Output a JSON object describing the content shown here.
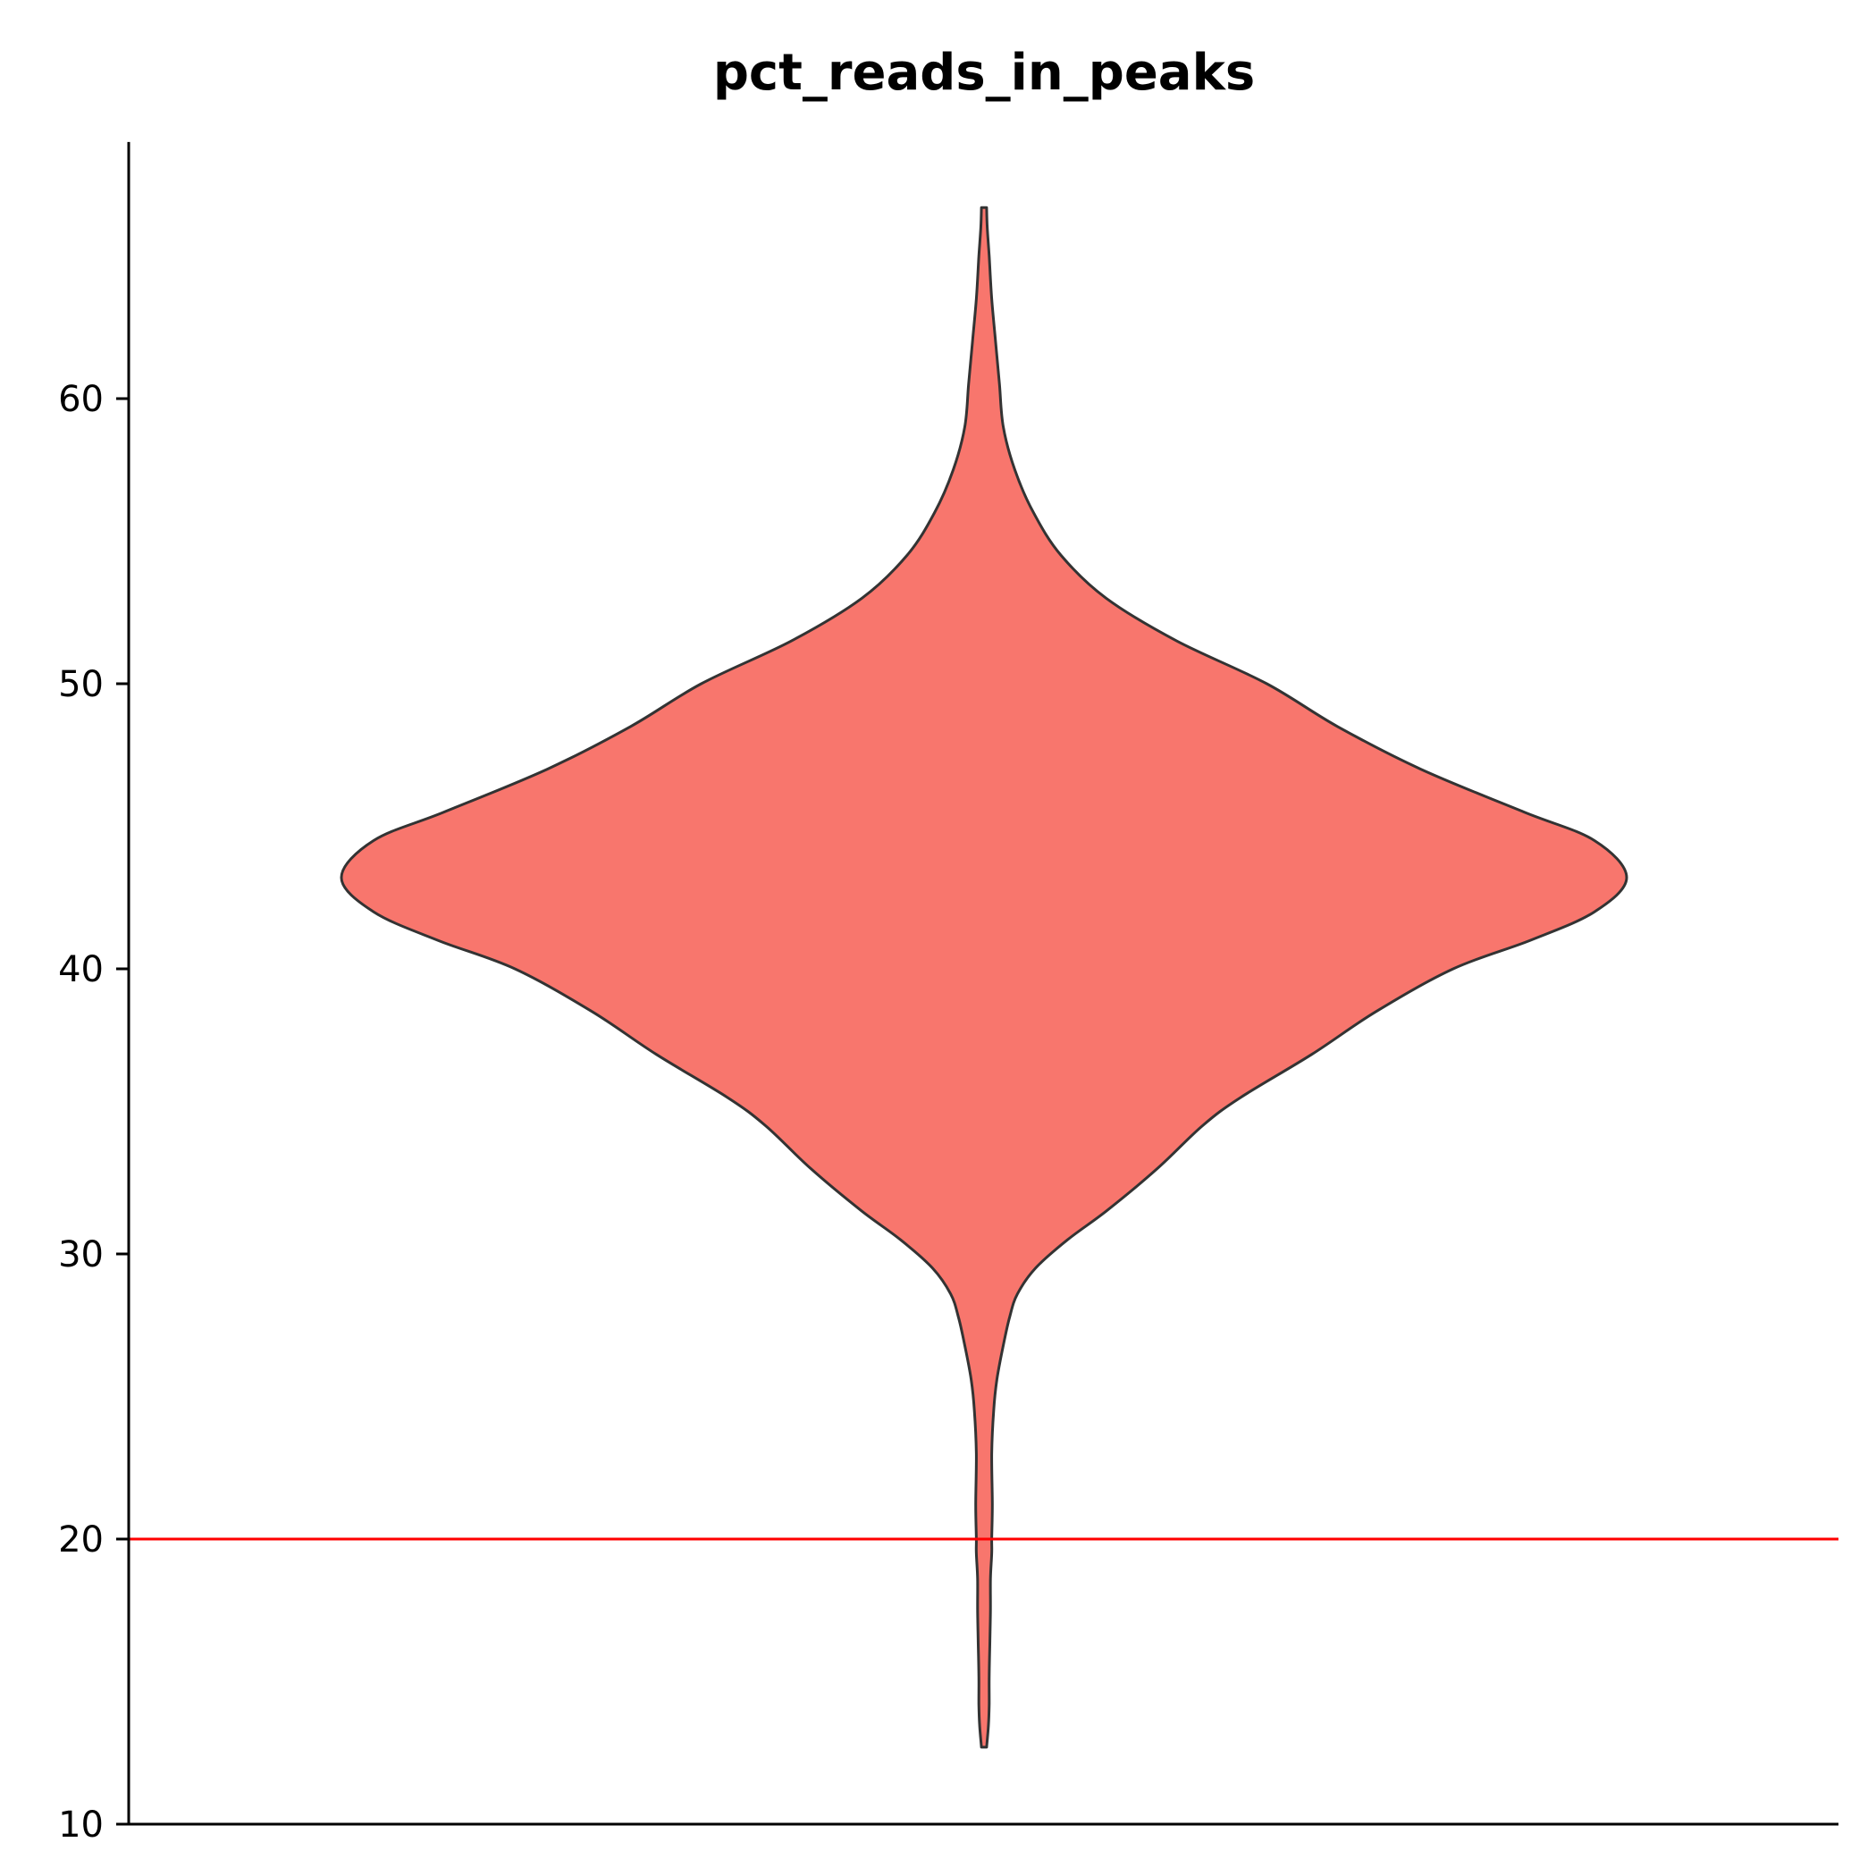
{
  "chart_data": {
    "type": "violin",
    "title": "pct_reads_in_peaks",
    "xlabel": "",
    "ylabel": "",
    "ylim": [
      10,
      69
    ],
    "yticks": [
      10,
      20,
      30,
      40,
      50,
      60
    ],
    "grid": false,
    "legend": "none",
    "colors": {
      "fill": "#F8766D",
      "outline": "#333333",
      "threshold": "#FF0000",
      "axis": "#000000"
    },
    "threshold_line": {
      "y": 20
    },
    "violin": {
      "min": 12.7,
      "max": 66.7,
      "density_profile": [
        [
          12.7,
          0.004
        ],
        [
          13.5,
          0.007
        ],
        [
          14.2,
          0.008
        ],
        [
          15.2,
          0.008
        ],
        [
          16.3,
          0.009
        ],
        [
          17.5,
          0.01
        ],
        [
          18.6,
          0.01
        ],
        [
          19.5,
          0.012
        ],
        [
          20.0,
          0.012
        ],
        [
          21.2,
          0.013
        ],
        [
          23.0,
          0.012
        ],
        [
          24.5,
          0.015
        ],
        [
          25.6,
          0.02
        ],
        [
          26.8,
          0.03
        ],
        [
          27.8,
          0.04
        ],
        [
          28.6,
          0.052
        ],
        [
          29.5,
          0.08
        ],
        [
          30.5,
          0.13
        ],
        [
          31.5,
          0.19
        ],
        [
          33.0,
          0.27
        ],
        [
          34.5,
          0.34
        ],
        [
          35.5,
          0.4
        ],
        [
          37.0,
          0.51
        ],
        [
          38.5,
          0.61
        ],
        [
          40.0,
          0.73
        ],
        [
          41.0,
          0.85
        ],
        [
          42.0,
          0.95
        ],
        [
          43.2,
          1.0
        ],
        [
          44.5,
          0.95
        ],
        [
          45.5,
          0.84
        ],
        [
          47.0,
          0.68
        ],
        [
          48.5,
          0.55
        ],
        [
          50.0,
          0.44
        ],
        [
          51.5,
          0.3
        ],
        [
          53.0,
          0.19
        ],
        [
          54.5,
          0.12
        ],
        [
          56.0,
          0.077
        ],
        [
          57.5,
          0.048
        ],
        [
          59.0,
          0.03
        ],
        [
          60.5,
          0.024
        ],
        [
          62.0,
          0.018
        ],
        [
          63.5,
          0.012
        ],
        [
          65.0,
          0.008
        ],
        [
          66.0,
          0.005
        ],
        [
          66.7,
          0.004
        ]
      ]
    }
  }
}
